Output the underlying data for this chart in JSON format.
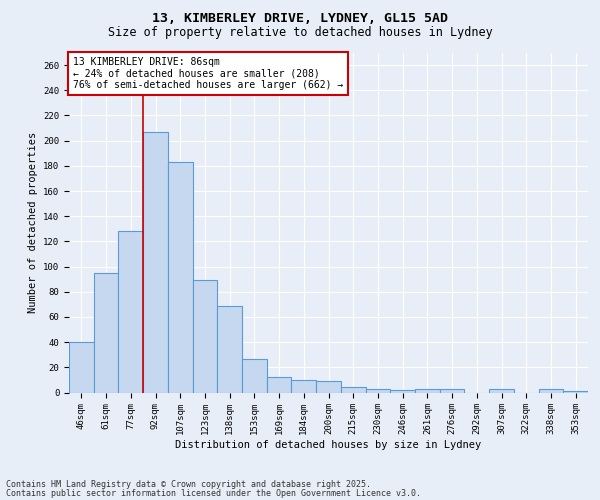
{
  "title_line1": "13, KIMBERLEY DRIVE, LYDNEY, GL15 5AD",
  "title_line2": "Size of property relative to detached houses in Lydney",
  "xlabel": "Distribution of detached houses by size in Lydney",
  "ylabel": "Number of detached properties",
  "categories": [
    "46sqm",
    "61sqm",
    "77sqm",
    "92sqm",
    "107sqm",
    "123sqm",
    "138sqm",
    "153sqm",
    "169sqm",
    "184sqm",
    "200sqm",
    "215sqm",
    "230sqm",
    "246sqm",
    "261sqm",
    "276sqm",
    "292sqm",
    "307sqm",
    "322sqm",
    "338sqm",
    "353sqm"
  ],
  "values": [
    40,
    95,
    128,
    207,
    183,
    89,
    69,
    27,
    12,
    10,
    9,
    4,
    3,
    2,
    3,
    3,
    0,
    3,
    0,
    3,
    1
  ],
  "bar_color": "#c5d8f0",
  "bar_edge_color": "#5b9bd5",
  "bar_linewidth": 0.8,
  "vline_x": 2.5,
  "vline_color": "#cc0000",
  "vline_linewidth": 1.2,
  "annotation_text": "13 KIMBERLEY DRIVE: 86sqm\n← 24% of detached houses are smaller (208)\n76% of semi-detached houses are larger (662) →",
  "annotation_box_color": "#ffffff",
  "annotation_box_edge": "#cc0000",
  "ylim": [
    0,
    270
  ],
  "yticks": [
    0,
    20,
    40,
    60,
    80,
    100,
    120,
    140,
    160,
    180,
    200,
    220,
    240,
    260
  ],
  "background_color": "#e8eef7",
  "grid_color": "#ffffff",
  "footer_line1": "Contains HM Land Registry data © Crown copyright and database right 2025.",
  "footer_line2": "Contains public sector information licensed under the Open Government Licence v3.0.",
  "title_fontsize": 9.5,
  "subtitle_fontsize": 8.5,
  "axis_label_fontsize": 7.5,
  "tick_fontsize": 6.5,
  "annotation_fontsize": 7,
  "footer_fontsize": 6
}
